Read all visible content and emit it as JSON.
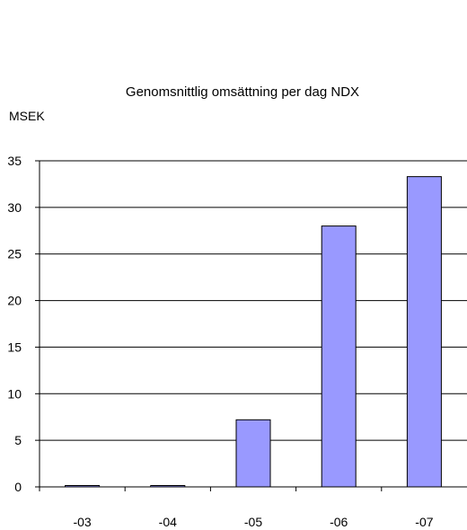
{
  "chart_data": {
    "type": "bar",
    "title": "Genomsnittlig omsättning per dag NDX",
    "unit_label": "MSEK",
    "categories": [
      "-03",
      "-04",
      "-05",
      "-06",
      "-07"
    ],
    "values": [
      0.1,
      0.1,
      7.2,
      28.0,
      33.3
    ],
    "ylim": [
      0,
      35
    ],
    "yticks": [
      "0",
      "5",
      "10",
      "15",
      "20",
      "25",
      "30",
      "35"
    ],
    "ytick_values": [
      0,
      5,
      10,
      15,
      20,
      25,
      30,
      35
    ],
    "grid": true,
    "legend": "none",
    "colors": {
      "bar_fill": "#9999ff",
      "bar_stroke": "#000000",
      "grid": "#000000"
    }
  }
}
